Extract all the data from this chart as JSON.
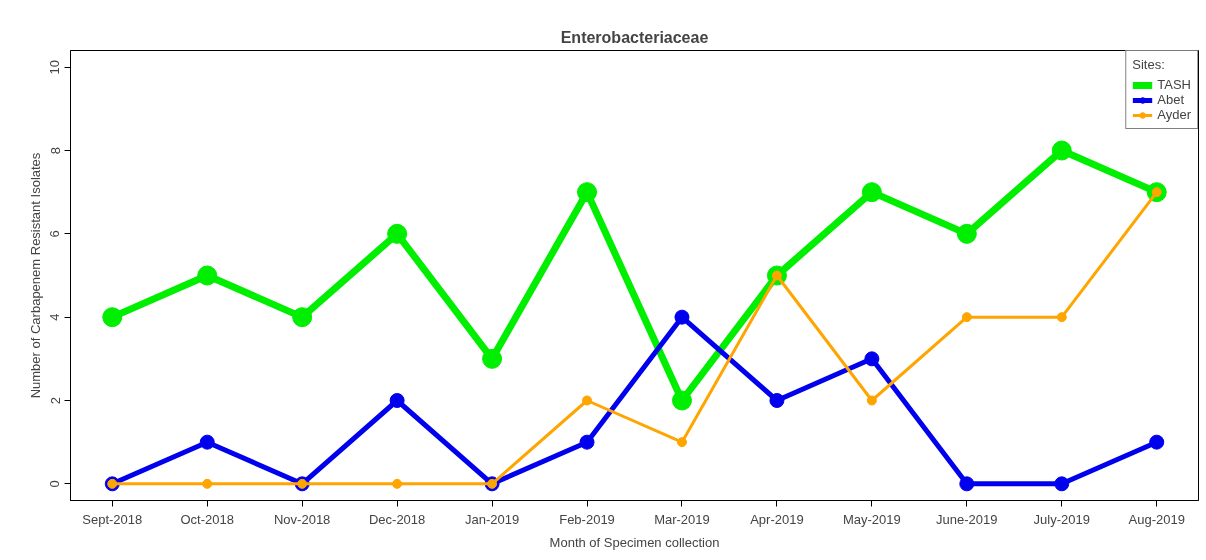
{
  "chart_data": {
    "type": "line",
    "title": "Enterobacteriaceae",
    "xlabel": "Month of Specimen collection",
    "ylabel": "Number of Carbapenem Resistant Isolates",
    "legend_title": "Sites:",
    "categories": [
      "Sept-2018",
      "Oct-2018",
      "Nov-2018",
      "Dec-2018",
      "Jan-2019",
      "Feb-2019",
      "Mar-2019",
      "Apr-2019",
      "May-2019",
      "June-2019",
      "July-2019",
      "Aug-2019"
    ],
    "series": [
      {
        "name": "TASH",
        "color": "#00ee00",
        "values": [
          4,
          5,
          4,
          6,
          3,
          7,
          2,
          5,
          7,
          6,
          8,
          7
        ]
      },
      {
        "name": "Abet",
        "color": "#0000ee",
        "values": [
          0,
          1,
          0,
          2,
          0,
          1,
          4,
          2,
          3,
          0,
          0,
          1
        ]
      },
      {
        "name": "Ayder",
        "color": "#ffa500",
        "values": [
          0,
          0,
          0,
          0,
          0,
          2,
          1,
          5,
          2,
          4,
          4,
          7
        ]
      }
    ],
    "ylim": [
      -0.4,
      10.4
    ],
    "yticks": [
      0,
      2,
      4,
      6,
      8,
      10
    ],
    "grid": false,
    "legend": "top right",
    "marker": "circle",
    "line_style": "solid"
  }
}
